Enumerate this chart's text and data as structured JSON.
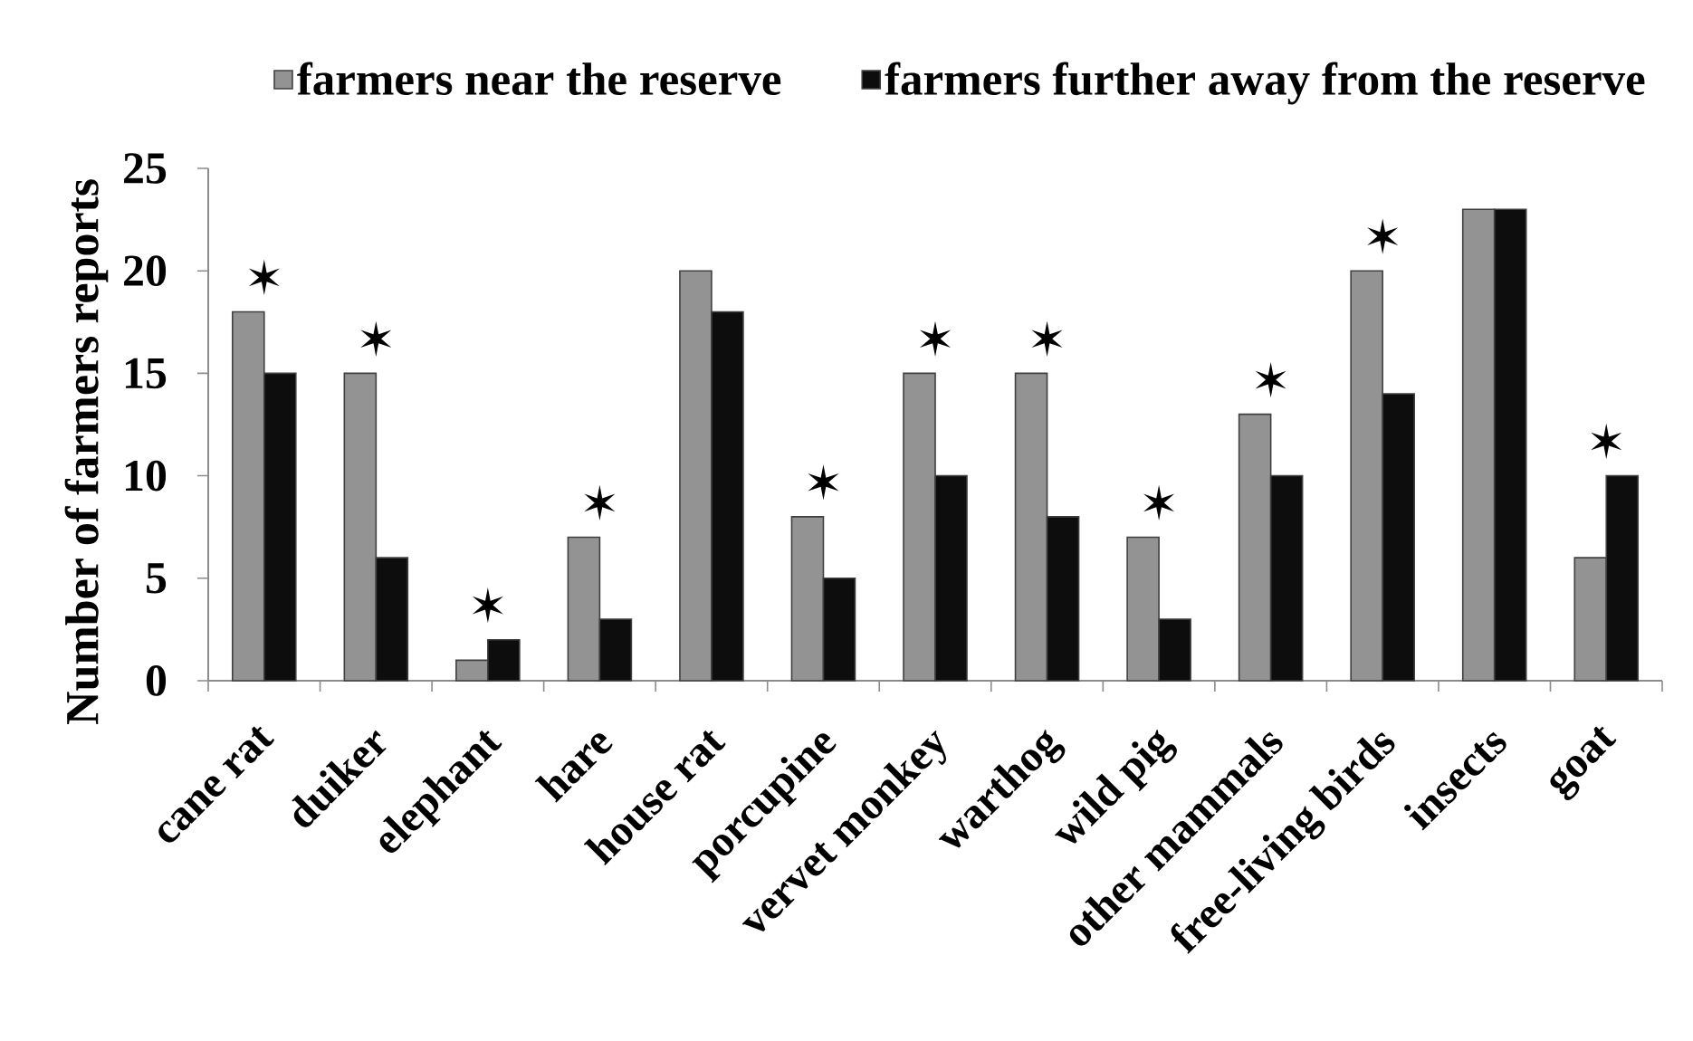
{
  "chart_data": {
    "type": "bar",
    "categories": [
      "cane rat",
      "duiker",
      "elephant",
      "hare",
      "house rat",
      "porcupine",
      "vervet monkey",
      "warthog",
      "wild pig",
      "other mammals",
      "free-living birds",
      "insects",
      "goat"
    ],
    "series": [
      {
        "name": "farmers near the reserve",
        "color": "#939393",
        "values": [
          18,
          15,
          1,
          7,
          20,
          8,
          15,
          15,
          7,
          13,
          20,
          23,
          6
        ],
        "value_labels": [
          "✶",
          "✶",
          null,
          "✶",
          null,
          "✶",
          "✶",
          "✶",
          "✶",
          "✶",
          "✶",
          null,
          null
        ]
      },
      {
        "name": "farmers further away from the reserve",
        "color": "#0d0d0d",
        "values": [
          15,
          6,
          2,
          3,
          18,
          5,
          10,
          8,
          3,
          10,
          14,
          23,
          10
        ],
        "value_labels": [
          null,
          null,
          "✶",
          null,
          null,
          null,
          null,
          null,
          null,
          null,
          null,
          null,
          "✶"
        ]
      }
    ],
    "ylabel": "Number of farmers reports",
    "ylim": [
      0,
      25
    ],
    "yticks": [
      0,
      5,
      10,
      15,
      20,
      25
    ],
    "legend": "top"
  }
}
